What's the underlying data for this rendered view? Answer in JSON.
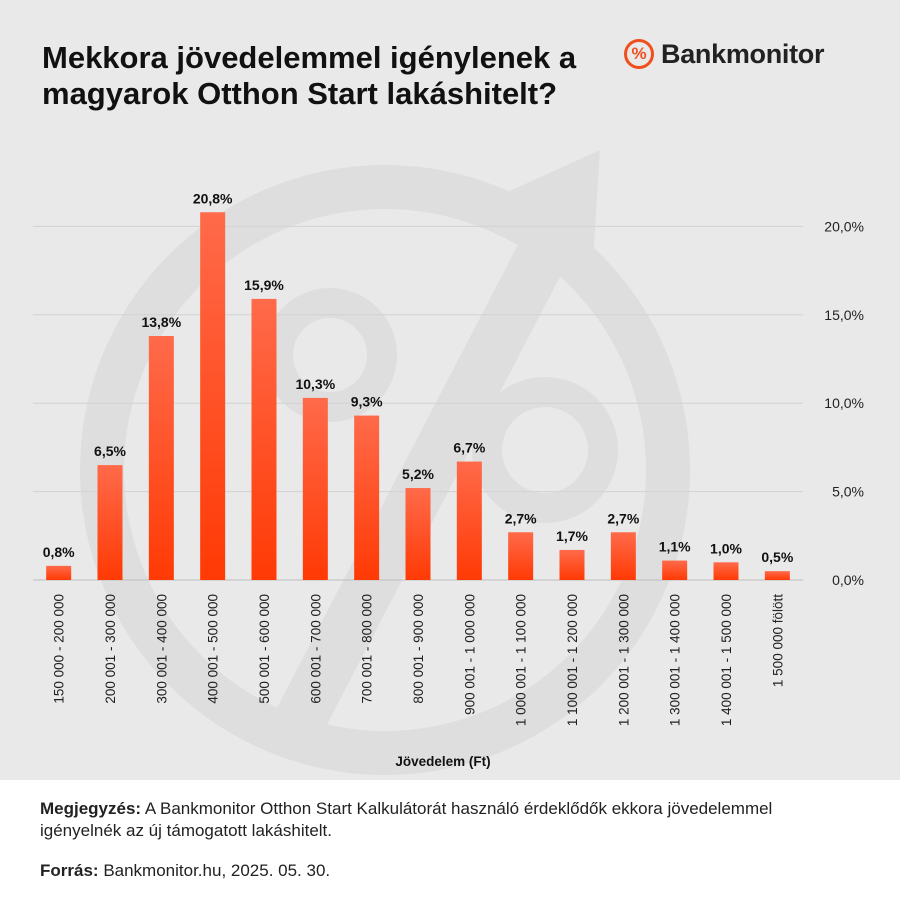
{
  "title": "Mekkora jövedelemmel igénylenek a magyarok Otthon Start lakáshitelt?",
  "logo": {
    "icon": "percent-badge-icon",
    "symbol": "%",
    "text": "Bankmonitor",
    "color": "#f0501e"
  },
  "chart_data": {
    "type": "bar",
    "xlabel": "Jövedelem (Ft)",
    "ylabel": "",
    "ylim": [
      0,
      22
    ],
    "yticks": [
      0,
      5,
      10,
      15,
      20
    ],
    "ytick_labels": [
      "0,0%",
      "5,0%",
      "10,0%",
      "15,0%",
      "20,0%"
    ],
    "y_axis_position": "right",
    "grid": true,
    "categories": [
      "150 000 - 200 000",
      "200 001 - 300 000",
      "300 001 - 400 000",
      "400 001 - 500 000",
      "500 001 - 600 000",
      "600 001 - 700 000",
      "700 001 - 800 000",
      "800 001 - 900 000",
      "900 001 - 1 000 000",
      "1 000 001 - 1 100 000",
      "1 100 001 - 1 200 000",
      "1 200 001 - 1 300 000",
      "1 300 001 - 1 400 000",
      "1 400 001 - 1 500 000",
      "1 500 000 fölött"
    ],
    "values": [
      0.8,
      6.5,
      13.8,
      20.8,
      15.9,
      10.3,
      9.3,
      5.2,
      6.7,
      2.7,
      1.7,
      2.7,
      1.1,
      1.0,
      0.5
    ],
    "value_labels": [
      "0,8%",
      "6,5%",
      "13,8%",
      "20,8%",
      "15,9%",
      "10,3%",
      "9,3%",
      "5,2%",
      "6,7%",
      "2,7%",
      "1,7%",
      "2,7%",
      "1,1%",
      "1,0%",
      "0,5%"
    ],
    "bar_color_top": "#ff6a4a",
    "bar_color_bottom": "#ff3a05"
  },
  "note": {
    "label": "Megjegyzés:",
    "text": "A Bankmonitor Otthon Start Kalkulátorát használó érdeklődők ekkora jövedelemmel igényelnék az új támogatott lakáshitelt."
  },
  "source": {
    "label": "Forrás:",
    "text": "Bankmonitor.hu, 2025. 05. 30."
  }
}
